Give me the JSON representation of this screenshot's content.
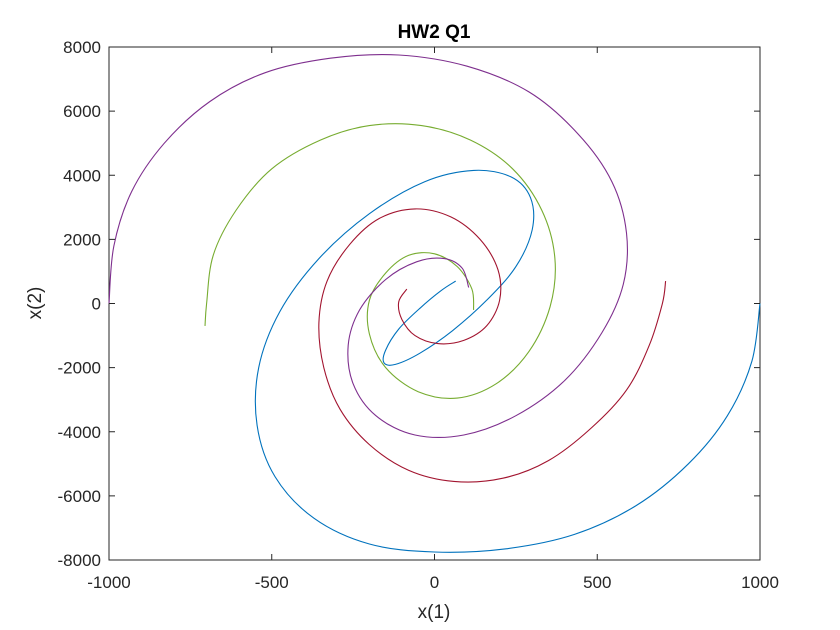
{
  "chart_data": {
    "type": "line",
    "title": "HW2 Q1",
    "xlabel": "x(1)",
    "ylabel": "x(2)",
    "xlim": [
      -1000,
      1000
    ],
    "ylim": [
      -8000,
      8000
    ],
    "xticks": [
      "-1000",
      "-500",
      "0",
      "500",
      "1000"
    ],
    "yticks": [
      "8000",
      "6000",
      "4000",
      "2000",
      "0",
      "-2000",
      "-4000",
      "-6000",
      "-8000"
    ],
    "xtick_values": [
      -1000,
      -500,
      0,
      500,
      1000
    ],
    "ytick_values": [
      8000,
      6000,
      4000,
      2000,
      0,
      -2000,
      -4000,
      -6000,
      -8000
    ],
    "grid": false,
    "series": [
      {
        "color": "#0072BD",
        "x": [
          1000,
          975,
          900,
          780,
          620,
          430,
          220,
          0,
          -200,
          -370,
          -490,
          -545,
          -540,
          -475,
          -355,
          -200,
          -30,
          120,
          235,
          295,
          300,
          250,
          160,
          55,
          -45,
          -120,
          -155,
          -150,
          -110,
          -45,
          20,
          65
        ],
        "y": [
          0,
          -1800,
          -3500,
          -5000,
          -6300,
          -7200,
          -7650,
          -7750,
          -7500,
          -6700,
          -5400,
          -3800,
          -2000,
          -250,
          1400,
          2800,
          3800,
          4150,
          3950,
          3300,
          2300,
          1150,
          100,
          -850,
          -1550,
          -1900,
          -1850,
          -1450,
          -800,
          -150,
          400,
          700
        ]
      },
      {
        "color": "#77AC30",
        "x": [
          -705,
          -700,
          -680,
          -610,
          -500,
          -350,
          -200,
          -40,
          110,
          240,
          330,
          370,
          355,
          290,
          190,
          70,
          -50,
          -150,
          -200,
          -200,
          -150,
          -80,
          0,
          70,
          115,
          120
        ],
        "y": [
          -700,
          0,
          1500,
          2900,
          4200,
          5100,
          5550,
          5550,
          5100,
          4200,
          2900,
          1400,
          -100,
          -1500,
          -2500,
          -2950,
          -2750,
          -2000,
          -950,
          100,
          950,
          1500,
          1550,
          1150,
          450,
          -200
        ]
      },
      {
        "color": "#A2142F",
        "x": [
          710,
          700,
          660,
          590,
          480,
          350,
          210,
          60,
          -80,
          -200,
          -290,
          -340,
          -355,
          -330,
          -260,
          -170,
          -60,
          50,
          140,
          195,
          200,
          160,
          90,
          10,
          -60,
          -100,
          -110,
          -85
        ],
        "y": [
          700,
          0,
          -1300,
          -2700,
          -3900,
          -4900,
          -5450,
          -5550,
          -5200,
          -4400,
          -3300,
          -2000,
          -600,
          700,
          1850,
          2650,
          2950,
          2700,
          2000,
          1050,
          100,
          -700,
          -1150,
          -1250,
          -1000,
          -500,
          50,
          450
        ]
      },
      {
        "color": "#7E2F8E",
        "x": [
          -1000,
          -985,
          -930,
          -830,
          -690,
          -520,
          -320,
          -110,
          100,
          290,
          440,
          545,
          590,
          580,
          515,
          400,
          250,
          90,
          -60,
          -180,
          -250,
          -265,
          -230,
          -150,
          -55,
          30,
          85,
          105
        ],
        "y": [
          0,
          1800,
          3500,
          5000,
          6300,
          7200,
          7650,
          7750,
          7400,
          6600,
          5300,
          3800,
          2200,
          600,
          -900,
          -2400,
          -3500,
          -4100,
          -4100,
          -3500,
          -2500,
          -1300,
          -200,
          750,
          1300,
          1400,
          1100,
          500
        ]
      }
    ]
  }
}
